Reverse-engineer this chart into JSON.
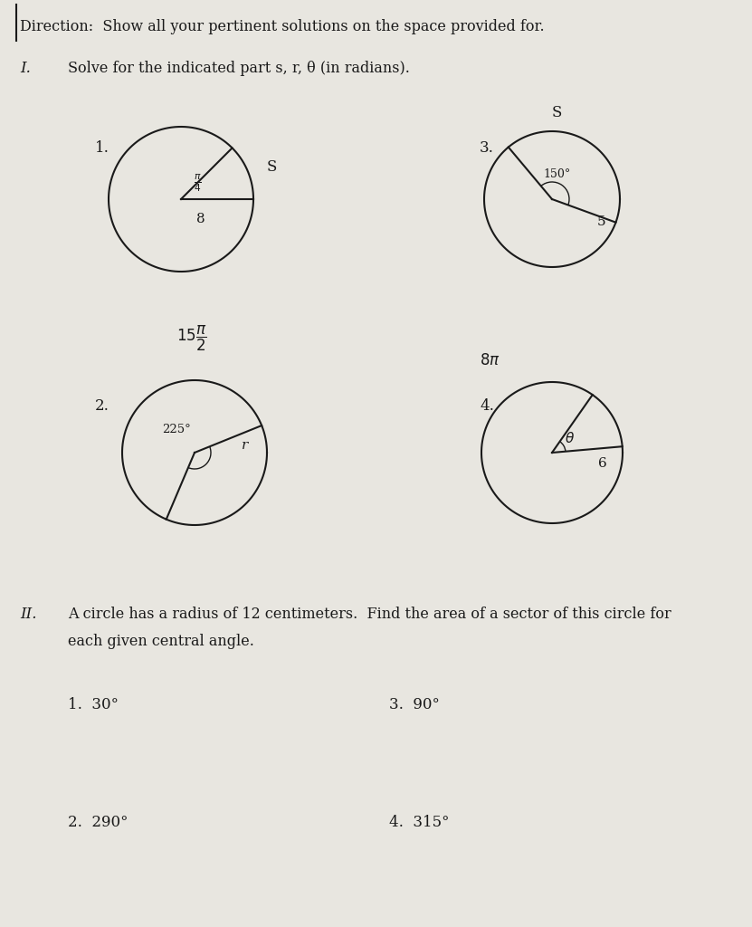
{
  "bg_color": "#e8e6e0",
  "text_color": "#1a1a1a",
  "direction_text": "Direction:  Show all your pertinent solutions on the space provided for.",
  "section_I_label": "I.",
  "section_I_text": "Solve for the indicated part s, r, θ (in radians).",
  "section_II_label": "II.",
  "section_II_line1": "A circle has a radius of 12 centimeters.  Find the area of a sector of this circle for",
  "section_II_line2": "each given central angle.",
  "prob1_label": "1.",
  "prob1_radius_label": "8",
  "prob1_arc_label": "S",
  "prob2_label": "2.",
  "prob2_arc_label": "15",
  "prob2_angle_label": "225°",
  "prob2_radius_label": "r",
  "prob3_label": "3.",
  "prob3_angle_label": "150°",
  "prob3_radius_label": "5",
  "prob3_arc_label": "S",
  "prob4_label": "4.",
  "prob4_arc_label": "8π",
  "prob4_angle_label": "θ",
  "prob4_radius_label": "6",
  "II_items": [
    {
      "num": "1.",
      "angle": "30°",
      "col": 0
    },
    {
      "num": "2.",
      "angle": "290°",
      "col": 0
    },
    {
      "num": "3.",
      "angle": "90°",
      "col": 1
    },
    {
      "num": "4.",
      "angle": "315°",
      "col": 1
    }
  ]
}
